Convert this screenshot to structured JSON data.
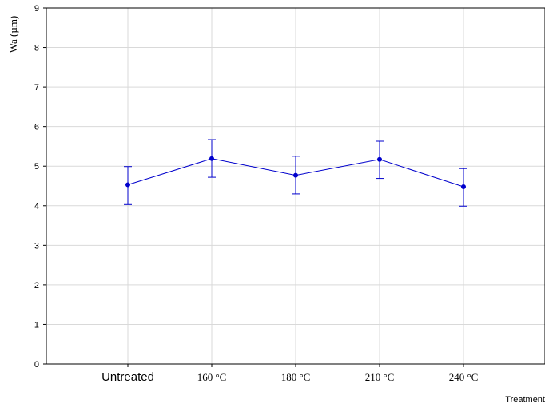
{
  "chart_data": {
    "type": "line",
    "categories": [
      "Untreated",
      "160 °C",
      "180 °C",
      "210 °C",
      "240 °C"
    ],
    "series": [
      {
        "values": [
          4.53,
          5.19,
          4.77,
          5.17,
          4.48
        ],
        "err_low": [
          4.03,
          4.72,
          4.3,
          4.69,
          3.99
        ],
        "err_high": [
          4.99,
          5.67,
          5.25,
          5.63,
          4.94
        ]
      }
    ],
    "xlabel": "Treatment",
    "ylabel": "Wa (µm)",
    "ylim": [
      0,
      9
    ],
    "yticks": [
      0,
      1,
      2,
      3,
      4,
      5,
      6,
      7,
      8,
      9
    ],
    "grid": true,
    "series_color": "#0000cc"
  }
}
